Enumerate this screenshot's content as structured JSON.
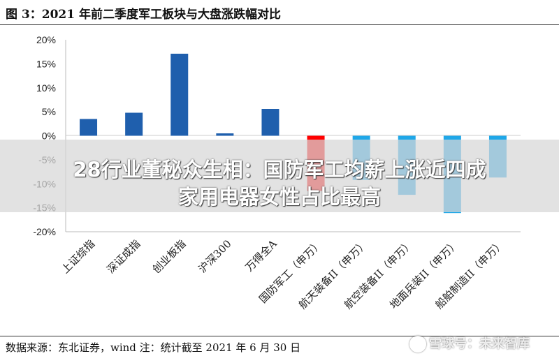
{
  "title": "图 3：2021 年前二季度军工板块与大盘涨跌幅对比",
  "source_note": "数据来源：东北证券，wind    注：统计截至 2021 年 6 月 30 日",
  "overlay": {
    "line1": "28行业董秘众生相：国防军工均薪上涨近四成",
    "line2": "家用电器女性占比最高"
  },
  "watermark": "雪球号：未来智库",
  "chart_data": {
    "type": "bar",
    "categories": [
      "上证综指",
      "深证成指",
      "创业板指",
      "沪深300",
      "万得全A",
      "国防军工（申万）",
      "航天装备II（申万）",
      "航空装备II（申万）",
      "地面兵装II（申万）",
      "船舶制造II（申万）"
    ],
    "values": [
      3.5,
      4.8,
      17.1,
      0.5,
      5.6,
      -11.5,
      -9.2,
      -12.3,
      -16.1,
      -8.7
    ],
    "bar_colors": [
      "#1f5fad",
      "#1f5fad",
      "#1f5fad",
      "#1f5fad",
      "#1f5fad",
      "#ff0000",
      "#1fa7e8",
      "#1fa7e8",
      "#1fa7e8",
      "#1fa7e8"
    ],
    "yticks": [
      "20%",
      "15%",
      "10%",
      "5%",
      "0%",
      "-5%",
      "-10%",
      "-15%",
      "-20%"
    ],
    "ylim": [
      -20,
      20
    ],
    "grid": false
  }
}
